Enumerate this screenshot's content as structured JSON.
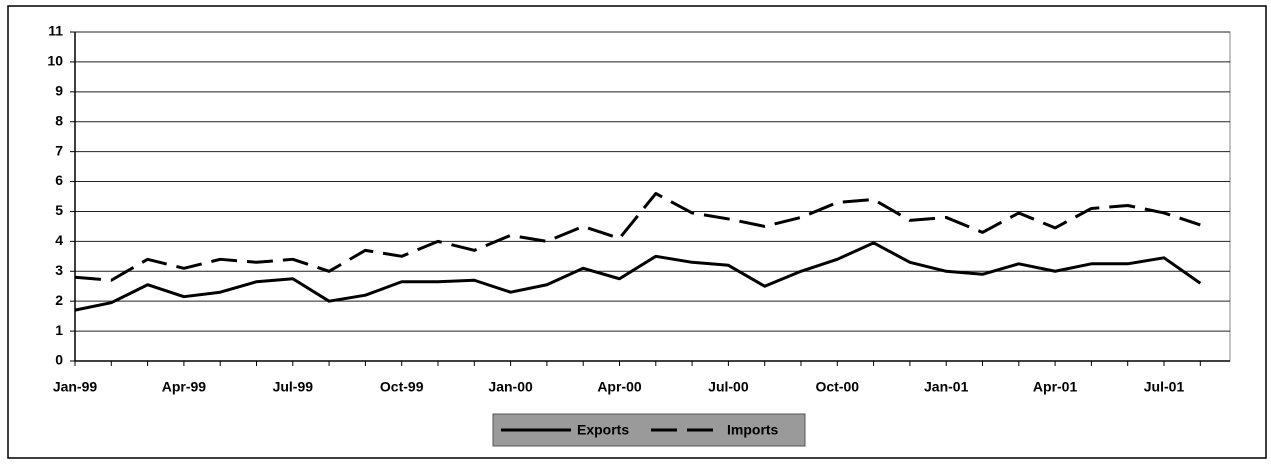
{
  "chart_data": {
    "type": "line",
    "categories": [
      "Jan-99",
      null,
      null,
      "Apr-99",
      null,
      null,
      "Jul-99",
      null,
      null,
      "Oct-99",
      null,
      null,
      "Jan-00",
      null,
      null,
      "Apr-00",
      null,
      null,
      "Jul-00",
      null,
      null,
      "Oct-00",
      null,
      null,
      "Jan-01",
      null,
      null,
      "Apr-01",
      null,
      null,
      "Jul-01",
      null
    ],
    "series": [
      {
        "name": "Exports",
        "color": "#000000",
        "dash": false,
        "values": [
          1.7,
          1.95,
          2.55,
          2.15,
          2.3,
          2.65,
          2.75,
          2.0,
          2.2,
          2.65,
          2.65,
          2.7,
          2.3,
          2.55,
          3.1,
          2.75,
          3.5,
          3.3,
          3.2,
          2.5,
          3.0,
          3.4,
          3.95,
          3.3,
          3.0,
          2.9,
          3.25,
          3.0,
          3.25,
          3.25,
          3.45,
          2.6
        ]
      },
      {
        "name": "Imports",
        "color": "#000000",
        "dash": true,
        "values": [
          2.8,
          2.7,
          3.4,
          3.1,
          3.4,
          3.3,
          3.4,
          3.0,
          3.7,
          3.5,
          4.0,
          3.7,
          4.2,
          4.0,
          4.5,
          4.1,
          5.6,
          4.95,
          4.75,
          4.5,
          4.8,
          5.3,
          5.4,
          4.7,
          4.8,
          4.3,
          4.95,
          4.45,
          5.1,
          5.2,
          4.95,
          4.55
        ]
      }
    ],
    "ylim": [
      0,
      11
    ],
    "yticks": [
      0,
      1,
      2,
      3,
      4,
      5,
      6,
      7,
      8,
      9,
      10,
      11
    ],
    "grid": true,
    "legend": "bottom"
  }
}
